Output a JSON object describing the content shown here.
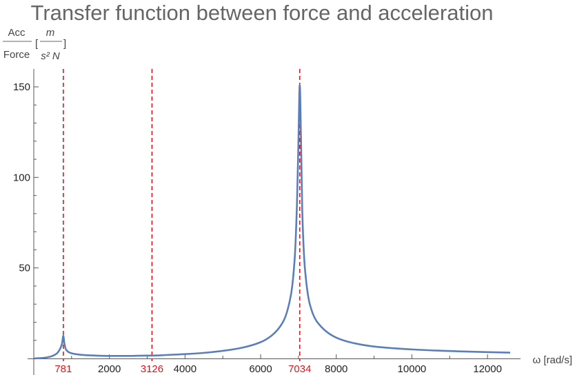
{
  "colors": {
    "series": "#5a7eb8",
    "marker": "#e3141c",
    "axis": "#555555",
    "title": "#666666"
  },
  "chart_data": {
    "type": "line",
    "title": "Transfer function between force and acceleration",
    "ylabel": {
      "numerator": "Acc",
      "denominator": "Force",
      "unit_open": "[",
      "unit_numerator": "m",
      "unit_denominator": "s² N",
      "unit_close": "]"
    },
    "xlabel": "ω [rad/s]",
    "xlim": [
      0,
      12600
    ],
    "ylim": [
      0,
      155
    ],
    "xticks": [
      2000,
      4000,
      6000,
      8000,
      10000,
      12000
    ],
    "xtick_labels": [
      "2000",
      "4000",
      "6000",
      "8000",
      "10000",
      "12000"
    ],
    "yticks": [
      50,
      100,
      150
    ],
    "ytick_labels": [
      "50",
      "100",
      "150"
    ],
    "grid": false,
    "legend": "none",
    "vertical_markers": [
      {
        "x": 781,
        "label": "781",
        "style": "dashed"
      },
      {
        "x": 3126,
        "label": "3126",
        "style": "dashed"
      },
      {
        "x": 7034,
        "label": "7034",
        "style": "dashed"
      }
    ],
    "series": [
      {
        "x": [
          0,
          200,
          400,
          600,
          700,
          750,
          781,
          810,
          850,
          950,
          1100,
          1400,
          2000,
          2500,
          3000,
          3126,
          3500,
          4000,
          4500,
          5000,
          5500,
          6000,
          6300,
          6600,
          6800,
          6900,
          6960,
          7000,
          7034,
          7070,
          7100,
          7170,
          7300,
          7500,
          8000,
          8500,
          9000,
          10000,
          11000,
          12000,
          12600
        ],
        "values": [
          0,
          0.2,
          0.8,
          2.6,
          5.5,
          8.5,
          12.5,
          8.2,
          5.0,
          3.2,
          2.4,
          1.8,
          1.4,
          1.4,
          1.6,
          1.6,
          1.9,
          2.4,
          3.1,
          4.2,
          5.9,
          9.0,
          12.8,
          20.5,
          35,
          55,
          85,
          120,
          151,
          118,
          82,
          50,
          30,
          20,
          11.5,
          8.3,
          6.6,
          5.0,
          4.1,
          3.5,
          3.2
        ]
      }
    ]
  }
}
